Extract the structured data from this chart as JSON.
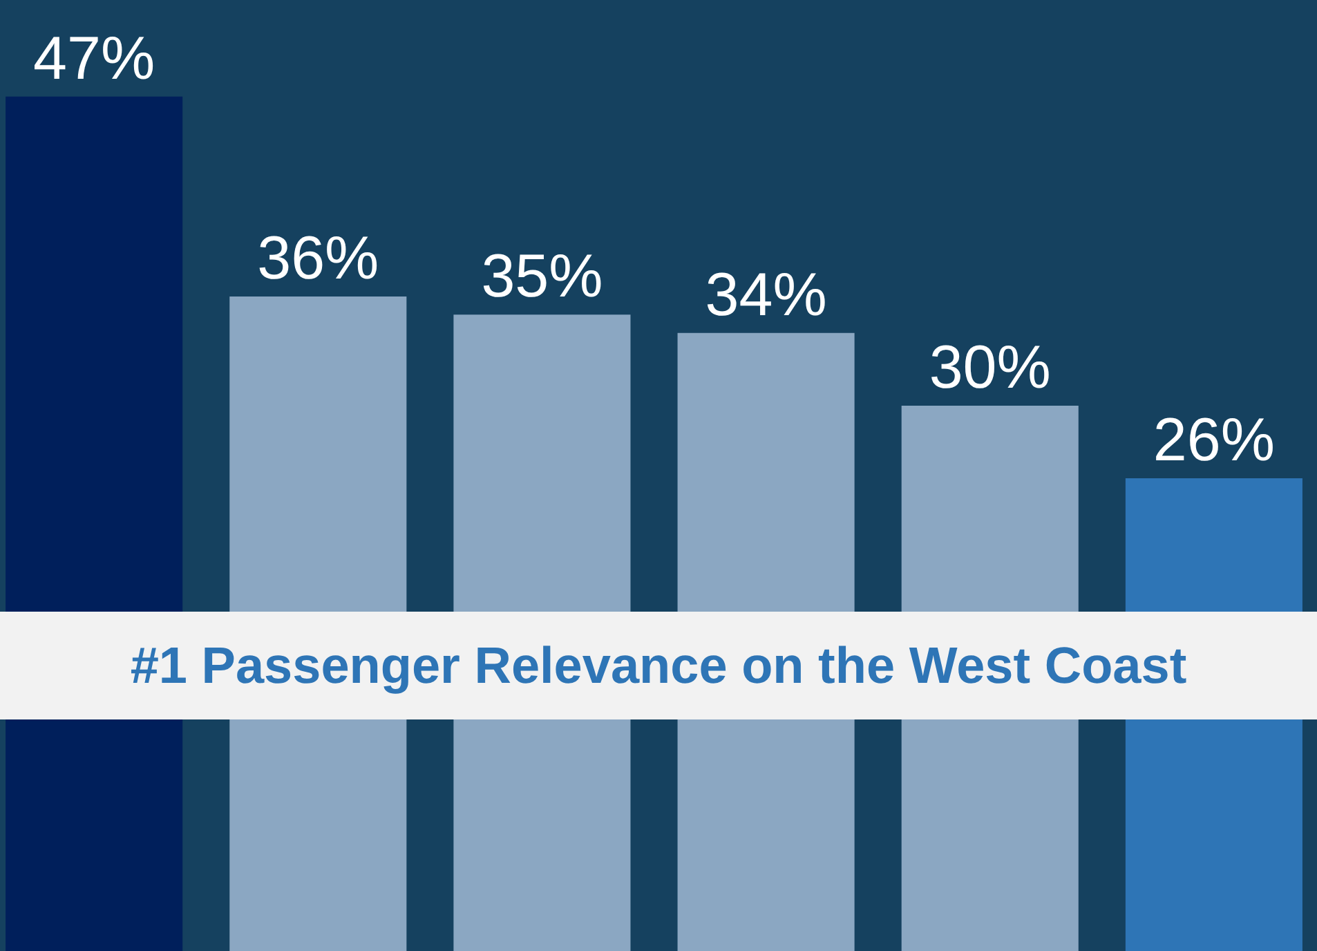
{
  "chart_data": {
    "type": "bar",
    "categories": [
      null,
      null,
      null,
      null,
      null,
      null
    ],
    "values": [
      47,
      36,
      35,
      34,
      30,
      26
    ],
    "colors": [
      "#001f5b",
      "#8ba7c2",
      "#8ba7c2",
      "#8ba7c2",
      "#8ba7c2",
      "#2e75b6"
    ],
    "value_labels": [
      "47%",
      "36%",
      "35%",
      "34%",
      "30%",
      "26%"
    ],
    "tick_labels": false,
    "grid": false,
    "legend": false,
    "annotations": [
      "#1 Passenger Relevance on the West Coast"
    ]
  }
}
